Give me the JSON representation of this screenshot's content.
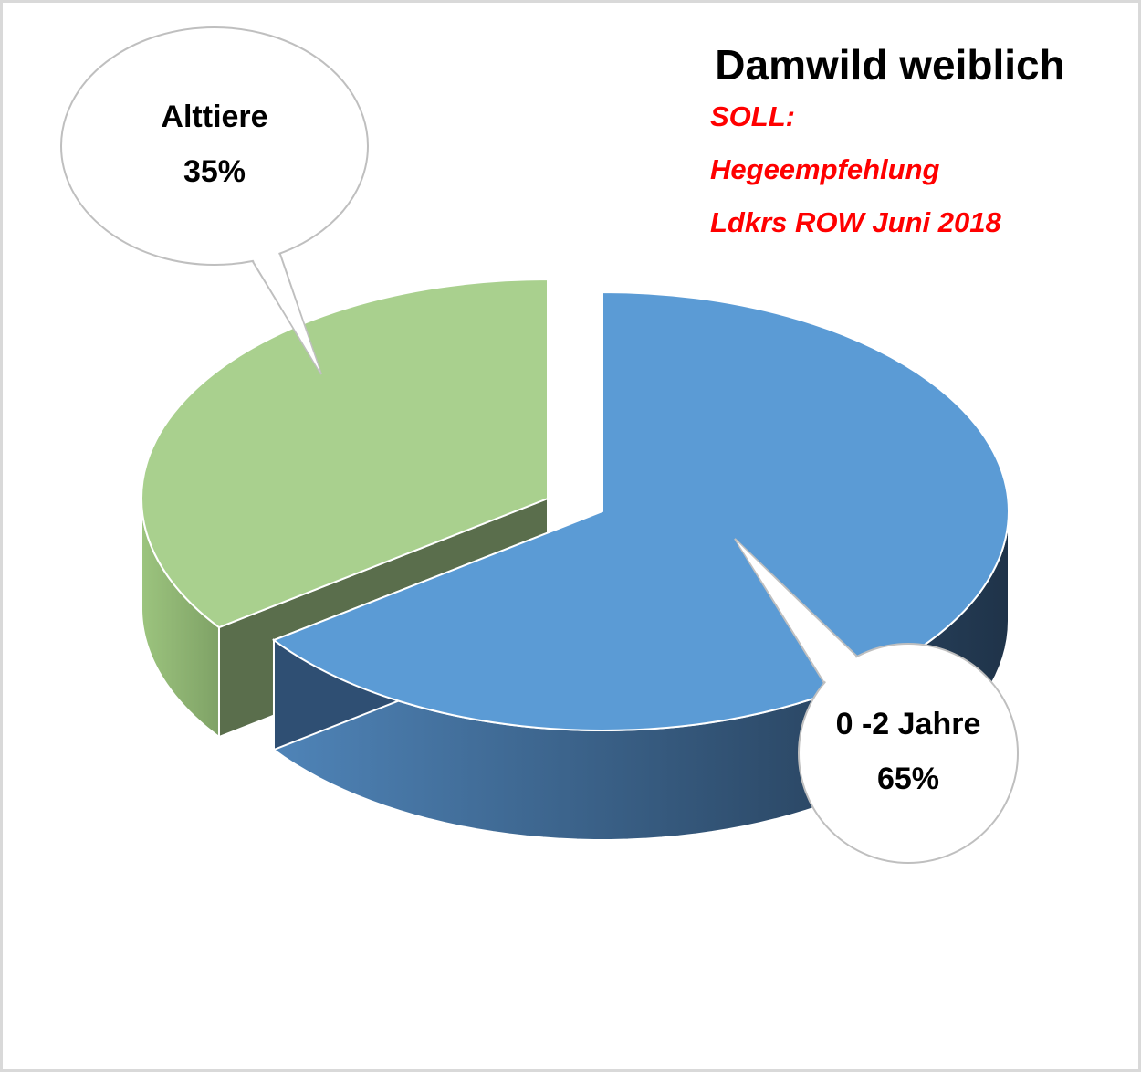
{
  "chart_data": {
    "type": "pie3d",
    "title": "Damwild weiblich",
    "subtitle": [
      "SOLL:",
      "Hegeempfehlung",
      "Ldkrs ROW Juni 2018"
    ],
    "categories": [
      "0 -2 Jahre",
      "Alttiere"
    ],
    "values": [
      65,
      35
    ],
    "value_labels": [
      "65%",
      "35%"
    ],
    "colors": [
      "#5b9bd5",
      "#a9d08e"
    ]
  }
}
